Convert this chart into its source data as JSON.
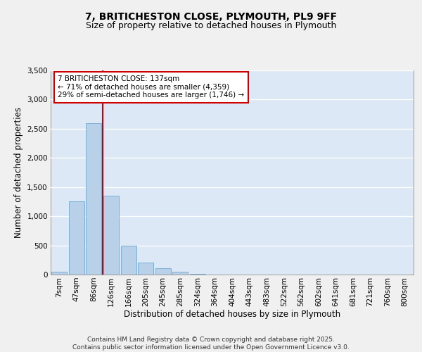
{
  "title_line1": "7, BRITICHESTON CLOSE, PLYMOUTH, PL9 9FF",
  "title_line2": "Size of property relative to detached houses in Plymouth",
  "xlabel": "Distribution of detached houses by size in Plymouth",
  "ylabel": "Number of detached properties",
  "categories": [
    "7sqm",
    "47sqm",
    "86sqm",
    "126sqm",
    "166sqm",
    "205sqm",
    "245sqm",
    "285sqm",
    "324sqm",
    "364sqm",
    "404sqm",
    "443sqm",
    "483sqm",
    "522sqm",
    "562sqm",
    "602sqm",
    "641sqm",
    "681sqm",
    "721sqm",
    "760sqm",
    "800sqm"
  ],
  "values": [
    50,
    1250,
    2600,
    1350,
    500,
    210,
    110,
    50,
    15,
    5,
    2,
    2,
    2,
    0,
    0,
    0,
    0,
    0,
    0,
    0,
    0
  ],
  "bar_color": "#b8d0e8",
  "bar_edge_color": "#7bafd4",
  "background_color": "#dce8f5",
  "grid_color": "#ffffff",
  "fig_background": "#f0f0f0",
  "vline_color": "#cc0000",
  "annotation_title": "7 BRITICHESTON CLOSE: 137sqm",
  "annotation_line1": "← 71% of detached houses are smaller (4,359)",
  "annotation_line2": "29% of semi-detached houses are larger (1,746) →",
  "annotation_box_color": "#cc0000",
  "ylim": [
    0,
    3500
  ],
  "yticks": [
    0,
    500,
    1000,
    1500,
    2000,
    2500,
    3000,
    3500
  ],
  "footer_line1": "Contains HM Land Registry data © Crown copyright and database right 2025.",
  "footer_line2": "Contains public sector information licensed under the Open Government Licence v3.0.",
  "title_fontsize": 10,
  "subtitle_fontsize": 9,
  "axis_label_fontsize": 8.5,
  "tick_fontsize": 7.5,
  "annotation_fontsize": 7.5,
  "footer_fontsize": 6.5
}
